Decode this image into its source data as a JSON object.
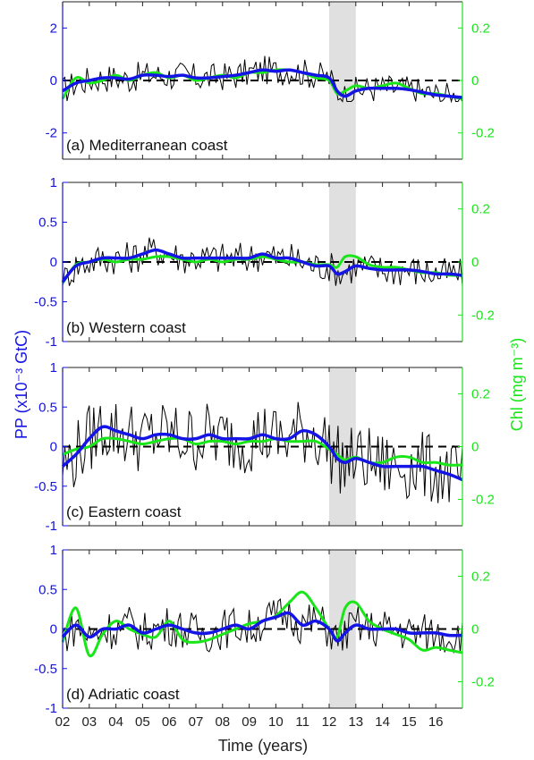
{
  "figure": {
    "y_axis_left_label": "PP (x10⁻³ GtC)",
    "y_axis_right_label": "Chl (mg m⁻³)",
    "x_axis_label": "Time (years)",
    "x_tick_labels": [
      "02",
      "03",
      "04",
      "05",
      "06",
      "07",
      "08",
      "09",
      "10",
      "11",
      "12",
      "13",
      "14",
      "15",
      "16"
    ],
    "colors": {
      "pp_smoothed": "#1414e6",
      "chl": "#19e619",
      "pp_monthly": "#000000",
      "shading": "#e0e0e0",
      "left_axis": "#1414e6",
      "right_axis": "#19e619"
    }
  },
  "chart_data": [
    {
      "type": "line",
      "title": "(a) Mediterranean coast",
      "xlim": [
        2002,
        2017
      ],
      "ylim_left": [
        -3,
        3
      ],
      "ylim_right": [
        -0.3,
        0.3
      ],
      "left_ticks": [
        "-2",
        "0",
        "2"
      ],
      "right_ticks": [
        "-0.2",
        "0",
        "0.2"
      ],
      "shaded_interval": [
        2012.0,
        2013.0
      ],
      "zero_line": true,
      "pp_smoothed": {
        "x": [
          2002.0,
          2002.5,
          2003.0,
          2003.5,
          2004.0,
          2004.5,
          2005.0,
          2005.5,
          2006.0,
          2006.5,
          2007.0,
          2007.5,
          2008.0,
          2008.5,
          2009.0,
          2009.5,
          2010.0,
          2010.5,
          2011.0,
          2011.5,
          2012.0,
          2012.3,
          2012.6,
          2013.0,
          2013.5,
          2014.0,
          2014.5,
          2015.0,
          2015.5,
          2016.0,
          2016.5,
          2017.0
        ],
        "y": [
          -0.4,
          -0.1,
          0.0,
          0.1,
          0.1,
          0.05,
          0.2,
          0.2,
          0.15,
          0.2,
          0.1,
          0.1,
          0.15,
          0.2,
          0.3,
          0.4,
          0.35,
          0.4,
          0.3,
          0.2,
          0.1,
          -0.4,
          -0.6,
          -0.4,
          -0.3,
          -0.3,
          -0.3,
          -0.35,
          -0.45,
          -0.55,
          -0.6,
          -0.65
        ]
      },
      "chl": {
        "x": [
          2002.0,
          2002.5,
          2003.0,
          2003.5,
          2004.0,
          2004.5,
          2005.0,
          2005.5,
          2006.0,
          2006.5,
          2007.0,
          2007.5,
          2008.0,
          2008.5,
          2009.0,
          2009.5,
          2010.0,
          2010.5,
          2011.0,
          2011.5,
          2012.0,
          2012.3,
          2012.6,
          2013.0,
          2013.5,
          2014.0,
          2014.5,
          2015.0,
          2015.5,
          2016.0,
          2016.5,
          2017.0
        ],
        "y": [
          -0.07,
          0.01,
          -0.01,
          0.0,
          0.02,
          0.0,
          0.02,
          0.03,
          0.01,
          0.02,
          0.0,
          0.01,
          0.02,
          0.01,
          0.03,
          0.03,
          0.04,
          0.04,
          0.03,
          0.01,
          0.0,
          -0.05,
          -0.04,
          -0.02,
          -0.03,
          -0.02,
          -0.01,
          -0.03,
          -0.05,
          -0.05,
          -0.06,
          -0.07
        ]
      },
      "pp_monthly_range": [
        -0.8,
        1.2
      ]
    },
    {
      "type": "line",
      "title": "(b) Western coast",
      "xlim": [
        2002,
        2017
      ],
      "ylim_left": [
        -1,
        1
      ],
      "ylim_right": [
        -0.3,
        0.3
      ],
      "left_ticks": [
        "-1",
        "-0.5",
        "0",
        "0.5",
        "1"
      ],
      "right_ticks": [
        "-0.2",
        "0",
        "0.2"
      ],
      "shaded_interval": [
        2012.0,
        2013.0
      ],
      "zero_line": true,
      "pp_smoothed": {
        "x": [
          2002.0,
          2002.5,
          2003.0,
          2003.5,
          2004.0,
          2004.5,
          2005.0,
          2005.5,
          2006.0,
          2006.5,
          2007.0,
          2007.5,
          2008.0,
          2008.5,
          2009.0,
          2009.5,
          2010.0,
          2010.5,
          2011.0,
          2011.5,
          2012.0,
          2012.3,
          2012.6,
          2013.0,
          2013.5,
          2014.0,
          2014.5,
          2015.0,
          2015.5,
          2016.0,
          2016.5,
          2017.0
        ],
        "y": [
          -0.25,
          -0.05,
          0.0,
          0.05,
          0.05,
          0.05,
          0.1,
          0.15,
          0.1,
          0.05,
          0.05,
          0.05,
          0.05,
          0.05,
          0.05,
          0.1,
          0.05,
          0.05,
          0.0,
          -0.05,
          -0.05,
          -0.15,
          -0.12,
          -0.05,
          -0.08,
          -0.1,
          -0.1,
          -0.1,
          -0.12,
          -0.15,
          -0.15,
          -0.17
        ]
      },
      "chl": {
        "x": [
          2002.0,
          2002.5,
          2003.0,
          2003.5,
          2004.0,
          2004.5,
          2005.0,
          2005.5,
          2006.0,
          2006.5,
          2007.0,
          2007.5,
          2008.0,
          2008.5,
          2009.0,
          2009.5,
          2010.0,
          2010.5,
          2011.0,
          2011.5,
          2012.0,
          2012.3,
          2012.6,
          2013.0,
          2013.5,
          2014.0,
          2014.5,
          2015.0,
          2015.5,
          2016.0,
          2016.5,
          2017.0
        ],
        "y": [
          -0.08,
          -0.01,
          0.0,
          0.01,
          0.0,
          0.01,
          0.01,
          0.02,
          0.02,
          0.01,
          0.0,
          0.01,
          0.0,
          0.01,
          0.01,
          0.02,
          0.01,
          0.0,
          0.0,
          -0.01,
          -0.01,
          -0.02,
          0.02,
          0.02,
          -0.01,
          -0.02,
          -0.02,
          -0.03,
          -0.04,
          -0.04,
          -0.05,
          -0.05
        ]
      },
      "pp_monthly_range": [
        -0.3,
        0.45
      ]
    },
    {
      "type": "line",
      "title": "(c) Eastern coast",
      "xlim": [
        2002,
        2017
      ],
      "ylim_left": [
        -1,
        1
      ],
      "ylim_right": [
        -0.3,
        0.3
      ],
      "left_ticks": [
        "-1",
        "-0.5",
        "0",
        "0.5",
        "1"
      ],
      "right_ticks": [
        "-0.2",
        "0",
        "0.2"
      ],
      "shaded_interval": [
        2012.0,
        2013.0
      ],
      "zero_line": true,
      "pp_smoothed": {
        "x": [
          2002.0,
          2002.5,
          2003.0,
          2003.5,
          2004.0,
          2004.5,
          2005.0,
          2005.5,
          2006.0,
          2006.5,
          2007.0,
          2007.5,
          2008.0,
          2008.5,
          2009.0,
          2009.5,
          2010.0,
          2010.5,
          2011.0,
          2011.5,
          2012.0,
          2012.3,
          2012.6,
          2013.0,
          2013.5,
          2014.0,
          2014.5,
          2015.0,
          2015.5,
          2016.0,
          2016.5,
          2017.0
        ],
        "y": [
          -0.25,
          -0.1,
          0.1,
          0.25,
          0.2,
          0.15,
          0.1,
          0.15,
          0.15,
          0.1,
          0.1,
          0.15,
          0.1,
          0.1,
          0.1,
          0.15,
          0.1,
          0.1,
          0.2,
          0.15,
          0.0,
          -0.15,
          -0.2,
          -0.15,
          -0.2,
          -0.25,
          -0.25,
          -0.25,
          -0.25,
          -0.3,
          -0.35,
          -0.42
        ]
      },
      "chl": {
        "x": [
          2002.0,
          2002.5,
          2003.0,
          2003.5,
          2004.0,
          2004.5,
          2005.0,
          2005.5,
          2006.0,
          2006.5,
          2007.0,
          2007.5,
          2008.0,
          2008.5,
          2009.0,
          2009.5,
          2010.0,
          2010.5,
          2011.0,
          2011.5,
          2012.0,
          2012.3,
          2012.6,
          2013.0,
          2013.5,
          2014.0,
          2014.5,
          2015.0,
          2015.5,
          2016.0,
          2016.5,
          2017.0
        ],
        "y": [
          -0.03,
          -0.01,
          0.0,
          0.03,
          0.03,
          0.02,
          0.01,
          0.02,
          0.03,
          0.03,
          0.01,
          0.02,
          0.02,
          0.01,
          0.02,
          0.02,
          0.03,
          0.02,
          0.02,
          0.02,
          -0.01,
          -0.03,
          -0.05,
          -0.04,
          -0.06,
          -0.06,
          -0.04,
          -0.04,
          -0.06,
          -0.06,
          -0.07,
          -0.07
        ]
      },
      "pp_monthly_range": [
        -0.8,
        0.78
      ]
    },
    {
      "type": "line",
      "title": "(d) Adriatic coast",
      "xlim": [
        2002,
        2017
      ],
      "ylim_left": [
        -1,
        1
      ],
      "ylim_right": [
        -0.3,
        0.3
      ],
      "left_ticks": [
        "-1",
        "-0.5",
        "0",
        "0.5",
        "1"
      ],
      "right_ticks": [
        "-0.2",
        "0",
        "0.2"
      ],
      "shaded_interval": [
        2012.0,
        2013.0
      ],
      "zero_line": true,
      "pp_smoothed": {
        "x": [
          2002.0,
          2002.5,
          2003.0,
          2003.5,
          2004.0,
          2004.5,
          2005.0,
          2005.5,
          2006.0,
          2006.5,
          2007.0,
          2007.5,
          2008.0,
          2008.5,
          2009.0,
          2009.5,
          2010.0,
          2010.5,
          2011.0,
          2011.5,
          2012.0,
          2012.3,
          2012.6,
          2013.0,
          2013.5,
          2014.0,
          2014.5,
          2015.0,
          2015.5,
          2016.0,
          2016.5,
          2017.0
        ],
        "y": [
          -0.1,
          0.05,
          -0.1,
          0.0,
          0.0,
          0.05,
          -0.05,
          0.0,
          0.05,
          0.0,
          -0.05,
          -0.05,
          0.0,
          0.05,
          0.0,
          0.1,
          0.15,
          0.2,
          0.05,
          0.1,
          0.0,
          -0.15,
          -0.05,
          0.05,
          0.0,
          0.0,
          0.0,
          -0.05,
          -0.05,
          -0.05,
          -0.08,
          -0.08
        ]
      },
      "chl": {
        "x": [
          2002.0,
          2002.5,
          2003.0,
          2003.5,
          2004.0,
          2004.5,
          2005.0,
          2005.5,
          2006.0,
          2006.5,
          2007.0,
          2007.5,
          2008.0,
          2008.5,
          2009.0,
          2009.5,
          2010.0,
          2010.5,
          2011.0,
          2011.5,
          2012.0,
          2012.3,
          2012.6,
          2013.0,
          2013.5,
          2014.0,
          2014.5,
          2015.0,
          2015.5,
          2016.0,
          2016.5,
          2017.0
        ],
        "y": [
          -0.05,
          0.08,
          -0.1,
          -0.02,
          0.03,
          0.0,
          -0.02,
          -0.03,
          0.03,
          -0.04,
          -0.05,
          -0.04,
          -0.02,
          0.0,
          0.02,
          0.03,
          0.05,
          0.1,
          0.14,
          0.08,
          0.0,
          -0.03,
          0.08,
          0.1,
          0.03,
          0.0,
          -0.02,
          -0.04,
          -0.08,
          -0.07,
          -0.08,
          -0.09
        ]
      },
      "pp_monthly_range": [
        -0.3,
        0.62
      ]
    }
  ]
}
